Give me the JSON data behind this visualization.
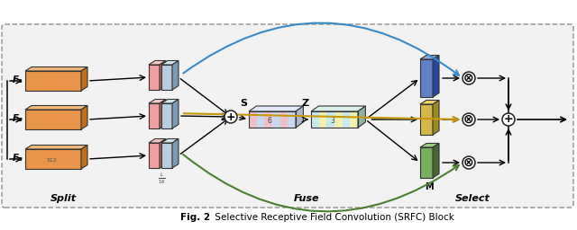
{
  "title_bold": "Fig. 2",
  "title_rest": " Selective Receptive Field Convolution (SRFC) Block",
  "labels": {
    "F1": "F₁",
    "F2": "F₂",
    "F3": "F₃",
    "split": "Split",
    "fuse": "Fuse",
    "select": "Select",
    "S": "S",
    "Z": "Z",
    "M": "M",
    "s512": "512",
    "sL": "L",
    "s16": "16",
    "s6": "6",
    "s3": "3"
  },
  "colors": {
    "orange_face": "#E8954A",
    "orange_side": "#BF6E1A",
    "orange_top": "#F2B87A",
    "pink_face": "#EF9F9F",
    "pink_side": "#C26060",
    "pink_top": "#F5C8C8",
    "lightblue_face": "#B8CDE0",
    "lightblue_side": "#7A9AB5",
    "lightblue_top": "#D5E5F0",
    "blue_face": "#6080C8",
    "blue_side": "#2848A0",
    "blue_top": "#8AA8E0",
    "yellow_face": "#D4B84A",
    "yellow_side": "#A08820",
    "yellow_top": "#E8D468",
    "green_face": "#78B060",
    "green_side": "#456830",
    "green_top": "#9CCE80",
    "s_stripe1": "#F0C0C8",
    "s_stripe2": "#C8D8F0",
    "s_top": "#E0E8F8",
    "s_side": "#B0B8CC",
    "z_stripe1": "#C8E8F0",
    "z_stripe2": "#F0F0B0",
    "z_top": "#D8F0E8",
    "z_side": "#90B0A0",
    "arrow_blue": "#3A8AC8",
    "arrow_yellow": "#C8960A",
    "arrow_green": "#4A8030",
    "arrow_black": "#111111",
    "bg": "#F2F2F2",
    "border": "#999999"
  }
}
